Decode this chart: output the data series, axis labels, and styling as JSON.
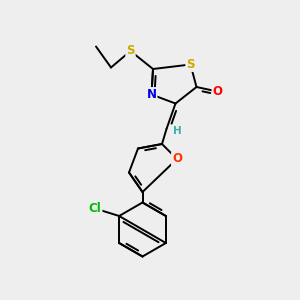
{
  "background_color": "#eeeeee",
  "atom_colors": {
    "S": "#ccaa00",
    "N": "#0000ee",
    "O_ketone": "#ff0000",
    "O_furan": "#ff3300",
    "Cl": "#00bb00",
    "H": "#44aaaa"
  },
  "bond_color": "#000000",
  "bond_width": 1.4,
  "font_size_atom": 8.5
}
